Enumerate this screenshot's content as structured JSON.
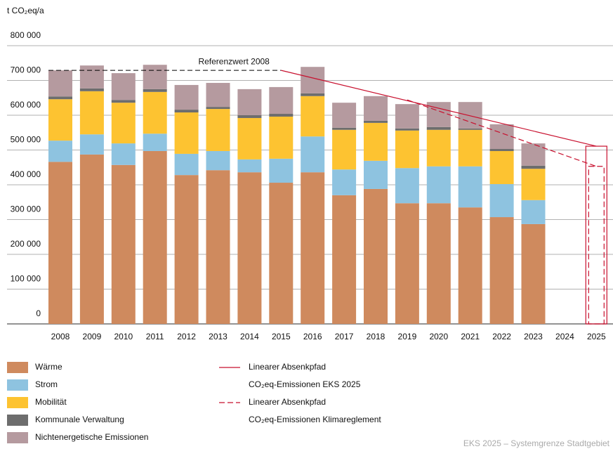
{
  "chart_data": {
    "type": "stacked_bar",
    "y_label": "t CO₂eq/a",
    "categories": [
      "2008",
      "2009",
      "2010",
      "2011",
      "2012",
      "2013",
      "2014",
      "2015",
      "2016",
      "2017",
      "2018",
      "2019",
      "2020",
      "2021",
      "2022",
      "2023",
      "2024",
      "2025"
    ],
    "series": [
      {
        "name": "Wärme",
        "color": "#cf8a5e",
        "values": [
          466000,
          487000,
          457000,
          497000,
          428000,
          442000,
          436000,
          406000,
          436000,
          370000,
          388000,
          347000,
          347000,
          335000,
          307000,
          287000,
          null,
          null
        ]
      },
      {
        "name": "Strom",
        "color": "#8ec3e0",
        "values": [
          61000,
          58000,
          62000,
          50000,
          61000,
          55000,
          37000,
          69000,
          103000,
          74000,
          81000,
          101000,
          106000,
          118000,
          95000,
          69000,
          null,
          null
        ]
      },
      {
        "name": "Mobilität",
        "color": "#fdc331",
        "values": [
          119000,
          124000,
          117000,
          120000,
          119000,
          121000,
          119000,
          121000,
          116000,
          114000,
          109000,
          108000,
          105000,
          105000,
          95000,
          90000,
          null,
          null
        ]
      },
      {
        "name": "Kommunale Verwaltung",
        "color": "#6d6d6d",
        "values": [
          8000,
          8000,
          8000,
          8000,
          8000,
          6000,
          8000,
          8000,
          8000,
          6000,
          6000,
          6000,
          8000,
          4000,
          6000,
          9000,
          null,
          null
        ]
      },
      {
        "name": "Nichtenergetische Emissionen",
        "color": "#b59a9f",
        "values": [
          75000,
          66000,
          77000,
          70000,
          71000,
          69000,
          75000,
          77000,
          76000,
          72000,
          71000,
          70000,
          72000,
          76000,
          71000,
          64000,
          null,
          null
        ]
      }
    ],
    "lines": [
      {
        "name": "Linearer Absenkpfad",
        "label": "CO₂eq-Emissionen EKS 2025",
        "color": "#c8102e",
        "dashed": false,
        "x": [
          "2015",
          "2025"
        ],
        "values": [
          729000,
          511000
        ]
      },
      {
        "name": "Linearer Absenkpfad",
        "label": "CO₂eq-Emissionen Klimareglement",
        "color": "#c8102e",
        "dashed": true,
        "x": [
          "2019",
          "2025"
        ],
        "values": [
          644000,
          453000
        ]
      }
    ],
    "reference": {
      "label": "Referenzwert 2008",
      "value": 729000,
      "x": [
        "2008",
        "2015"
      ]
    },
    "ylim": [
      0,
      800000
    ],
    "yticks": [
      0,
      {
        "value": 100000,
        "label": "100 000"
      },
      {
        "value": 200000,
        "label": "200 000"
      },
      {
        "value": 300000,
        "label": "300 000"
      },
      {
        "value": 400000,
        "label": "400 000"
      },
      {
        "value": 500000,
        "label": "500 000"
      },
      {
        "value": 600000,
        "label": "600 000"
      },
      {
        "value": 700000,
        "label": "700 000"
      },
      {
        "value": 800000,
        "label": "800 000"
      }
    ],
    "grid": true,
    "footer": "EKS 2025 – Systemgrenze Stadtgebiet"
  }
}
